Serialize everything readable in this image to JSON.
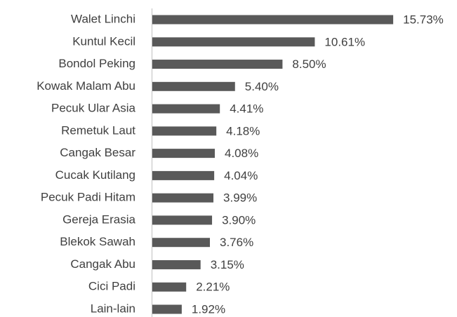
{
  "chart_data": {
    "type": "hbar",
    "categories": [
      "Walet Linchi",
      "Kuntul Kecil",
      "Bondol Peking",
      "Kowak Malam Abu",
      "Pecuk Ular Asia",
      "Remetuk Laut",
      "Cangak Besar",
      "Cucak Kutilang",
      "Pecuk Padi Hitam",
      "Gereja Erasia",
      "Blekok Sawah",
      "Cangak Abu",
      "Cici Padi",
      "Lain-lain"
    ],
    "values": [
      15.73,
      10.61,
      8.5,
      5.4,
      4.41,
      4.18,
      4.08,
      4.04,
      3.99,
      3.9,
      3.76,
      3.15,
      2.21,
      1.92
    ],
    "value_labels": [
      "15.73%",
      "10.61%",
      "8.50%",
      "5.40%",
      "4.41%",
      "4.18%",
      "4.08%",
      "4.04%",
      "3.99%",
      "3.90%",
      "3.76%",
      "3.15%",
      "2.21%",
      "1.92%"
    ],
    "color": "#595959",
    "xlim": [
      0,
      16
    ]
  }
}
